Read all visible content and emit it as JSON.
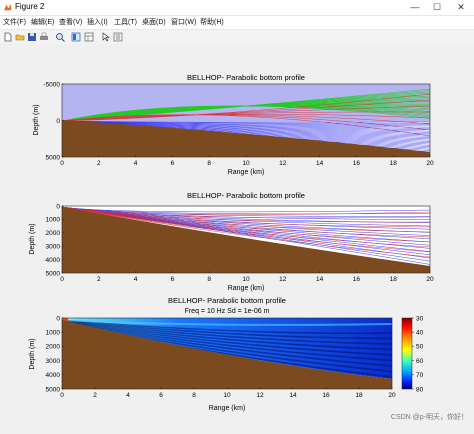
{
  "window": {
    "title": "Figure 2",
    "minimize": "—",
    "maximize": "☐",
    "close": "✕"
  },
  "menu": [
    "文件(F)",
    "编辑(E)",
    "查看(V)",
    "插入(I)",
    "工具(T)",
    "桌面(D)",
    "窗口(W)",
    "帮助(H)"
  ],
  "toolbar_icons": [
    "new-file-icon",
    "open-folder-icon",
    "save-icon",
    "print-icon",
    "zoom-icon",
    "panel-toggle-icon",
    "layout-icon",
    "pointer-icon",
    "edit-plot-icon"
  ],
  "colors": {
    "ocean_blue": "#b4b4f0",
    "bottom_brown": "#7b4a1e",
    "ray_green": "#22cc22",
    "ray_red": "#e03030",
    "ray_blue": "#2a2aee",
    "tl_background": "#0a0a8a"
  },
  "plot1": {
    "title": "BELLHOP- Parabolic bottom profile",
    "xlabel": "Range (km)",
    "ylabel": "Depth (m)",
    "xticks": [
      "0",
      "2",
      "4",
      "6",
      "8",
      "10",
      "12",
      "14",
      "16",
      "18",
      "20"
    ],
    "yticks": [
      "-5000",
      "0",
      "5000"
    ]
  },
  "plot2": {
    "title": "BELLHOP- Parabolic bottom profile",
    "xlabel": "Range (km)",
    "ylabel": "Depth (m)",
    "xticks": [
      "0",
      "2",
      "4",
      "6",
      "8",
      "10",
      "12",
      "14",
      "16",
      "18",
      "20"
    ],
    "yticks": [
      "0",
      "1000",
      "2000",
      "3000",
      "4000",
      "5000"
    ]
  },
  "plot3": {
    "title": "BELLHOP- Parabolic bottom profile",
    "subtitle": "Freq = 10 Hz    Sd = 1e-06 m",
    "xlabel": "Range (km)",
    "ylabel": "Depth (m)",
    "xticks": [
      "0",
      "2",
      "4",
      "6",
      "8",
      "10",
      "12",
      "14",
      "16",
      "18",
      "20"
    ],
    "yticks": [
      "0",
      "1000",
      "2000",
      "3000",
      "4000",
      "5000"
    ],
    "colorbar_ticks": [
      "30",
      "40",
      "50",
      "60",
      "70",
      "80"
    ]
  },
  "chart_data": [
    {
      "type": "line",
      "title": "BELLHOP- Parabolic bottom profile",
      "xlabel": "Range (km)",
      "ylabel": "Depth (m)",
      "xlim": [
        0,
        20
      ],
      "ylim": [
        -5000,
        5000
      ],
      "bottom_depth_start": 0,
      "bottom_depth_end": 4500
    },
    {
      "type": "line",
      "title": "BELLHOP- Parabolic bottom profile",
      "xlabel": "Range (km)",
      "ylabel": "Depth (m)",
      "xlim": [
        0,
        20
      ],
      "ylim": [
        0,
        5000
      ],
      "bottom_depth_start": 200,
      "bottom_depth_end": 4500
    },
    {
      "type": "heatmap",
      "title": "BELLHOP- Parabolic bottom profile",
      "subtitle": "Freq = 10 Hz    Sd = 1e-06 m",
      "xlabel": "Range (km)",
      "ylabel": "Depth (m)",
      "xlim": [
        0,
        20
      ],
      "ylim": [
        0,
        5000
      ],
      "colorbar_range": [
        30,
        80
      ]
    }
  ],
  "watermark": "CSDN @p-明天，你好！"
}
